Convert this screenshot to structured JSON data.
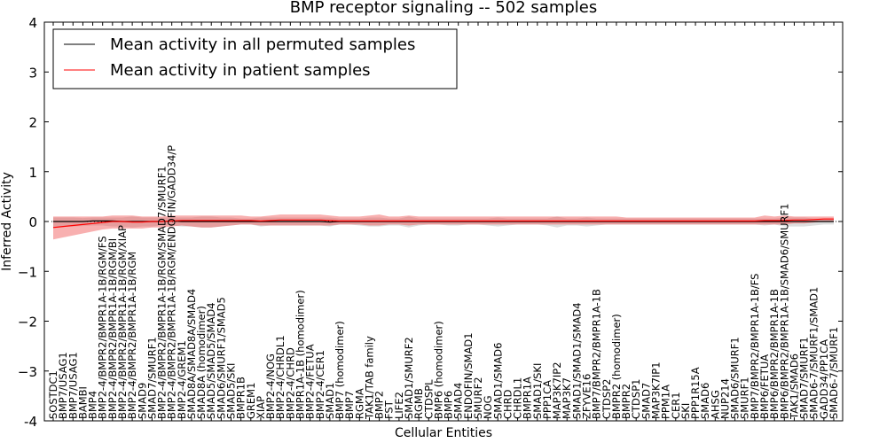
{
  "chart_data": {
    "type": "line",
    "title": "BMP receptor signaling -- 502 samples",
    "xlabel": "Cellular Entities",
    "ylabel": "Inferred Activity",
    "ylim": [
      -4,
      4
    ],
    "yticks": [
      "-4",
      "−3",
      "−2",
      "−1",
      "0",
      "1",
      "2",
      "3",
      "4"
    ],
    "ytick_values": [
      -4,
      -3,
      -2,
      -1,
      0,
      1,
      2,
      3,
      4
    ],
    "legend": {
      "placement": "top-left",
      "entries": [
        {
          "label": "Mean activity in all permuted samples",
          "color": "#000000"
        },
        {
          "label": "Mean activity in patient samples",
          "color": "#ff0000"
        }
      ]
    },
    "categories": [
      "SOSTDC1",
      "BMP7/USAG1",
      "BMP7/USAG1",
      "BAMBI",
      "BMP4",
      "BMP2-4/BMPR2/BMPR1A-1B/RGM/FS",
      "BMP2-4/BMPR2/BMPR1A-1B/RGM/BI",
      "BMP2-4/BMPR2/BMPR1A-1B/RGM/XIAP",
      "BMP2-4/BMPR2/BMPR1A-1B/RGM",
      "SMAD9",
      "SMAD7/SMURF1",
      "BMP2-4/BMPR2/BMPR1A-1B/RGM/SMAD7/SMURF1",
      "BMP2-4/BMPR2/BMPR1A-1B/RGM/ENDOFIN/GADD34/P",
      "BMP2-4/GREM1",
      "SMAD8A/SMAD8A/SMAD4",
      "SMAD8A (homodimer)",
      "SMAD5/SMAD5/SMAD4",
      "SMAD6/SMURF1/SMAD5",
      "SMAD5/SKI",
      "BMPR1B",
      "GREM1",
      "XIAP",
      "BMP2-4/NOG",
      "BMP2-4/CHRDL1",
      "BMP2-4/CHRD",
      "BMPR1A-1B (homodimer)",
      "BMP2-4/FETUA",
      "BMP2-4/CER1",
      "SMAD1",
      "BMP7 (homodimer)",
      "BMP7",
      "RGMA",
      "TAK1/TAB family",
      "BMP2",
      "FST",
      "LIFE2",
      "SMAD1/SMURF2",
      "RGMB",
      "CTDSPL",
      "BMP6 (homodimer)",
      "BMP6",
      "SMAD4",
      "ENDOFIN/SMAD1",
      "SMURF2",
      "NOG",
      "SMAD1/SMAD6",
      "CHRD",
      "CHRDL1",
      "BMPR1A",
      "SMAD1/SKI",
      "PPP1CA",
      "MAP3K7IP2",
      "MAP3K7",
      "SMAD1/SMAD1/SMAD4",
      "ZFYVE16",
      "BMP7/BMPR2/BMPR1A-1B",
      "CTDSP2",
      "BMPR2 (homodimer)",
      "BMPR2",
      "CTDSP1",
      "SMAD7",
      "MAP3K7IP1",
      "PPM1A",
      "CER1",
      "SKI",
      "PPP1R15A",
      "SMAD6",
      "AHSG",
      "NUP214",
      "SMAD6/SMURF1",
      "SMURF1",
      "BMP7/BMPR2/BMPR1A-1B/FS",
      "BMP6/FETUA",
      "BMP6/BMPR2/BMPR1A-1B",
      "BMP6/BMPR2/BMPR1A-1B/SMAD6/SMURF1",
      "TAK1/SMAD6",
      "SMAD7/SMURF1",
      "SMAD6-7/SMURF1/SMAD1",
      "GADD34/PP1CA",
      "SMAD6-7/SMURF1"
    ],
    "series": [
      {
        "name": "Mean activity in all permuted samples",
        "color": "#000000",
        "values": [
          0.0,
          0.0,
          0.0,
          0.0,
          0.01,
          0.01,
          0.01,
          0.0,
          0.0,
          0.0,
          0.0,
          0.0,
          0.01,
          0.0,
          0.0,
          0.0,
          0.0,
          0.0,
          0.0,
          0.0,
          0.0,
          0.0,
          0.0,
          0.0,
          0.0,
          0.0,
          0.0,
          0.0,
          -0.01,
          0.0,
          0.0,
          0.0,
          0.0,
          0.0,
          0.0,
          0.0,
          0.0,
          0.0,
          0.0,
          0.0,
          0.0,
          0.0,
          0.0,
          0.0,
          0.0,
          0.0,
          0.0,
          0.0,
          0.0,
          0.0,
          0.0,
          0.0,
          0.0,
          0.0,
          0.0,
          0.0,
          0.0,
          0.0,
          0.0,
          0.0,
          0.0,
          0.0,
          0.0,
          0.0,
          0.0,
          0.0,
          0.0,
          0.0,
          0.0,
          0.0,
          0.0,
          0.0,
          0.0,
          0.0,
          0.0,
          0.0,
          0.0,
          0.0,
          0.0,
          0.0
        ],
        "lower": [
          -0.12,
          -0.1,
          -0.1,
          -0.09,
          -0.08,
          -0.08,
          -0.1,
          -0.1,
          -0.12,
          -0.1,
          -0.1,
          -0.08,
          -0.08,
          -0.1,
          -0.1,
          -0.12,
          -0.12,
          -0.1,
          -0.08,
          -0.06,
          -0.06,
          -0.1,
          -0.08,
          -0.08,
          -0.08,
          -0.08,
          -0.08,
          -0.08,
          -0.1,
          -0.06,
          -0.06,
          -0.08,
          -0.1,
          -0.1,
          -0.08,
          -0.08,
          -0.12,
          -0.08,
          -0.06,
          -0.06,
          -0.08,
          -0.08,
          -0.06,
          -0.06,
          -0.08,
          -0.1,
          -0.08,
          -0.06,
          -0.06,
          -0.06,
          -0.08,
          -0.12,
          -0.08,
          -0.08,
          -0.1,
          -0.08,
          -0.06,
          -0.06,
          -0.06,
          -0.06,
          -0.06,
          -0.06,
          -0.06,
          -0.06,
          -0.06,
          -0.06,
          -0.06,
          -0.06,
          -0.06,
          -0.06,
          -0.06,
          -0.06,
          -0.08,
          -0.06,
          -0.1,
          -0.1,
          -0.1,
          -0.08,
          -0.06,
          -0.06
        ],
        "upper": [
          0.08,
          0.08,
          0.08,
          0.07,
          0.08,
          0.08,
          0.08,
          0.08,
          0.1,
          0.08,
          0.08,
          0.08,
          0.08,
          0.08,
          0.08,
          0.1,
          0.1,
          0.08,
          0.08,
          0.06,
          0.06,
          0.08,
          0.08,
          0.08,
          0.08,
          0.08,
          0.08,
          0.08,
          0.08,
          0.06,
          0.06,
          0.06,
          0.08,
          0.08,
          0.06,
          0.06,
          0.1,
          0.06,
          0.06,
          0.06,
          0.06,
          0.06,
          0.06,
          0.06,
          0.06,
          0.08,
          0.06,
          0.06,
          0.06,
          0.06,
          0.06,
          0.1,
          0.06,
          0.06,
          0.08,
          0.06,
          0.06,
          0.06,
          0.06,
          0.06,
          0.06,
          0.06,
          0.06,
          0.06,
          0.06,
          0.06,
          0.06,
          0.06,
          0.06,
          0.06,
          0.06,
          0.06,
          0.06,
          0.06,
          0.08,
          0.08,
          0.08,
          0.06,
          0.06,
          0.06
        ]
      },
      {
        "name": "Mean activity in patient samples",
        "color": "#ff0000",
        "values": [
          -0.12,
          -0.1,
          -0.08,
          -0.06,
          -0.04,
          -0.02,
          0.0,
          0.0,
          -0.01,
          -0.01,
          0.0,
          0.0,
          0.01,
          0.02,
          0.02,
          0.02,
          0.02,
          0.02,
          0.02,
          0.02,
          0.02,
          0.01,
          0.02,
          0.03,
          0.03,
          0.03,
          0.03,
          0.03,
          0.02,
          0.01,
          0.01,
          0.01,
          0.01,
          0.01,
          0.01,
          0.01,
          0.01,
          0.01,
          0.01,
          0.01,
          0.01,
          0.01,
          0.01,
          0.01,
          0.01,
          0.01,
          0.01,
          0.01,
          0.01,
          0.01,
          0.01,
          0.01,
          0.01,
          0.01,
          0.01,
          0.01,
          0.01,
          0.01,
          0.01,
          0.01,
          0.01,
          0.01,
          0.01,
          0.01,
          0.01,
          0.01,
          0.01,
          0.01,
          0.01,
          0.01,
          0.01,
          0.01,
          0.02,
          0.02,
          0.02,
          0.03,
          0.03,
          0.04,
          0.05,
          0.05
        ],
        "lower": [
          -0.36,
          -0.32,
          -0.28,
          -0.24,
          -0.2,
          -0.16,
          -0.14,
          -0.14,
          -0.14,
          -0.14,
          -0.12,
          -0.12,
          -0.1,
          -0.08,
          -0.1,
          -0.12,
          -0.12,
          -0.1,
          -0.08,
          -0.06,
          -0.06,
          -0.08,
          -0.08,
          -0.08,
          -0.08,
          -0.08,
          -0.08,
          -0.08,
          -0.08,
          -0.06,
          -0.06,
          -0.06,
          -0.08,
          -0.08,
          -0.06,
          -0.06,
          -0.08,
          -0.06,
          -0.06,
          -0.06,
          -0.06,
          -0.06,
          -0.06,
          -0.06,
          -0.06,
          -0.06,
          -0.06,
          -0.06,
          -0.06,
          -0.06,
          -0.06,
          -0.06,
          -0.06,
          -0.06,
          -0.06,
          -0.06,
          -0.06,
          -0.06,
          -0.06,
          -0.06,
          -0.06,
          -0.06,
          -0.06,
          -0.06,
          -0.06,
          -0.06,
          -0.06,
          -0.06,
          -0.06,
          -0.06,
          -0.06,
          -0.06,
          -0.06,
          -0.06,
          -0.06,
          -0.04,
          -0.04,
          -0.02,
          0.0,
          0.0
        ],
        "upper": [
          0.1,
          0.1,
          0.1,
          0.1,
          0.1,
          0.1,
          0.12,
          0.12,
          0.12,
          0.1,
          0.1,
          0.1,
          0.12,
          0.12,
          0.12,
          0.12,
          0.12,
          0.12,
          0.12,
          0.12,
          0.1,
          0.1,
          0.12,
          0.14,
          0.14,
          0.14,
          0.14,
          0.14,
          0.12,
          0.1,
          0.1,
          0.1,
          0.12,
          0.14,
          0.1,
          0.1,
          0.12,
          0.1,
          0.1,
          0.1,
          0.1,
          0.1,
          0.1,
          0.1,
          0.1,
          0.1,
          0.1,
          0.1,
          0.1,
          0.1,
          0.1,
          0.1,
          0.1,
          0.1,
          0.1,
          0.1,
          0.1,
          0.1,
          0.08,
          0.08,
          0.08,
          0.08,
          0.08,
          0.08,
          0.08,
          0.08,
          0.08,
          0.08,
          0.08,
          0.08,
          0.08,
          0.08,
          0.12,
          0.1,
          0.12,
          0.1,
          0.1,
          0.1,
          0.1,
          0.1
        ]
      }
    ]
  }
}
